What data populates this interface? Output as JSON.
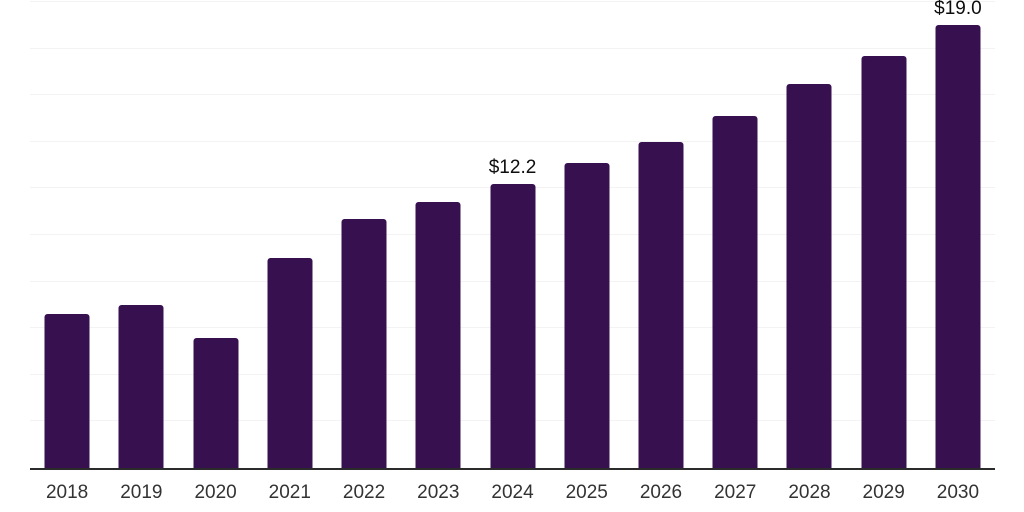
{
  "chart_data": {
    "type": "bar",
    "title": "",
    "categories": [
      "2018",
      "2019",
      "2020",
      "2021",
      "2022",
      "2023",
      "2024",
      "2025",
      "2026",
      "2027",
      "2028",
      "2029",
      "2030"
    ],
    "values": [
      6.6,
      7.0,
      5.6,
      9.0,
      10.7,
      11.4,
      12.2,
      13.1,
      14.0,
      15.1,
      16.5,
      17.7,
      19.0
    ],
    "bar_labels": [
      "",
      "",
      "",
      "",
      "",
      "",
      "$12.2",
      "",
      "",
      "",
      "",
      "",
      "$19.0"
    ],
    "ylim": [
      0,
      20
    ],
    "gridline_step": 2,
    "grid": true,
    "legend": "none",
    "colors": {
      "bar": "#37114F",
      "gridline": "#f3f3f3",
      "axis_line": "#2b2b2b",
      "value_label": "#0d0d0d",
      "tick_label": "#333333",
      "background": "#ffffff"
    }
  }
}
